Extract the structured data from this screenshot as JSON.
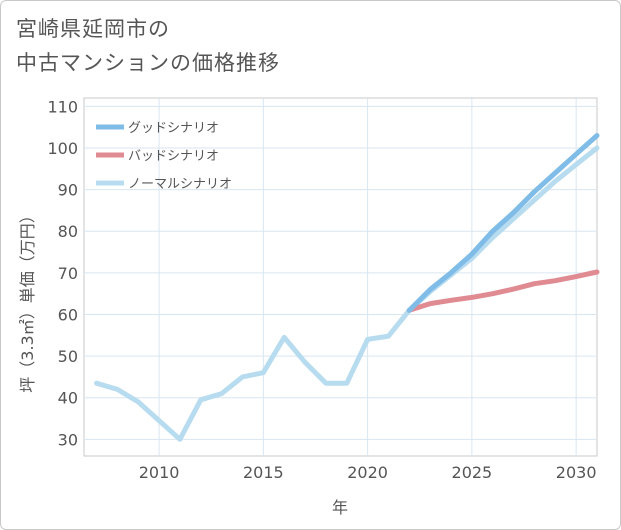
{
  "title_lines": [
    "宮崎県延岡市の",
    "中古マンションの価格推移"
  ],
  "chart_data": {
    "type": "line",
    "title": "宮崎県延岡市の中古マンションの価格推移",
    "xlabel": "年",
    "ylabel": "坪（3.3㎡）単価（万円）",
    "xlim": [
      2006.4,
      2031
    ],
    "ylim": [
      26,
      112
    ],
    "x_ticks": [
      2010,
      2015,
      2020,
      2025,
      2030
    ],
    "y_ticks": [
      30,
      40,
      50,
      60,
      70,
      80,
      90,
      100,
      110
    ],
    "grid": true,
    "legend_position": "top-left",
    "series": [
      {
        "name": "グッドシナリオ",
        "color": "#7fbce8",
        "x": [
          2022,
          2023,
          2024,
          2025,
          2026,
          2027,
          2028,
          2029,
          2030,
          2031
        ],
        "y": [
          61,
          66,
          70,
          74.5,
          80,
          84.5,
          89.5,
          94,
          98.5,
          103
        ]
      },
      {
        "name": "バッドシナリオ",
        "color": "#e08a92",
        "x": [
          2022,
          2023,
          2024,
          2025,
          2026,
          2027,
          2028,
          2029,
          2030,
          2031
        ],
        "y": [
          61,
          62.6,
          63.4,
          64.1,
          65,
          66.1,
          67.4,
          68.1,
          69.1,
          70.2
        ]
      },
      {
        "name": "ノーマルシナリオ",
        "color": "#b8dcef",
        "x": [
          2007,
          2008,
          2009,
          2010,
          2011,
          2012,
          2013,
          2014,
          2015,
          2016,
          2017,
          2018,
          2019,
          2020,
          2021,
          2022,
          2023,
          2024,
          2025,
          2026,
          2027,
          2028,
          2029,
          2030,
          2031
        ],
        "y": [
          43.5,
          42,
          39,
          34.5,
          30,
          39.5,
          41,
          45,
          46,
          54.5,
          48.5,
          43.5,
          43.5,
          54,
          54.8,
          61,
          65.5,
          69.5,
          73.5,
          78.5,
          83,
          87.5,
          92,
          96,
          100
        ]
      }
    ]
  }
}
